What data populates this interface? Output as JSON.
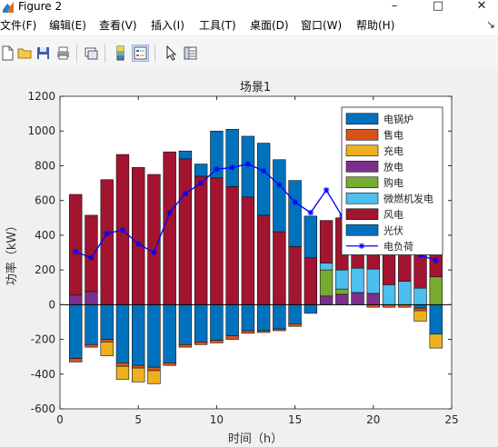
{
  "window": {
    "title": "Figure 2",
    "minimize": "–",
    "maximize": "□",
    "close": "✕"
  },
  "menu": {
    "items": [
      "文件(F)",
      "编辑(E)",
      "查看(V)",
      "插入(I)",
      "工具(T)",
      "桌面(D)",
      "窗口(W)",
      "帮助(H)"
    ],
    "dock_glyph": "↘"
  },
  "toolbar": {
    "icons": [
      "new-file-icon",
      "open-file-icon",
      "save-icon",
      "print-icon",
      "link-plot-icon",
      "insert-colorbar-icon",
      "insert-legend-icon",
      "pointer-icon",
      "property-inspector-icon"
    ]
  },
  "colors": {
    "boiler": "#0072bd",
    "sell": "#d95319",
    "charge": "#edb120",
    "discharge": "#7e2f8e",
    "buy": "#77ac30",
    "turbine": "#4dbeee",
    "wind": "#a2142f",
    "pv": "#0072bd",
    "load": "#0000ff"
  },
  "chart_data": {
    "type": "bar",
    "stacked": true,
    "title": "场景1",
    "xlabel": "时间（h）",
    "ylabel": "功率（kW）",
    "xlim": [
      0,
      25
    ],
    "ylim": [
      -600,
      1200
    ],
    "xticks": [
      0,
      5,
      10,
      15,
      20,
      25
    ],
    "yticks": [
      -600,
      -400,
      -200,
      0,
      200,
      400,
      600,
      800,
      1000,
      1200
    ],
    "legend_position": "top-right",
    "x": [
      1,
      2,
      3,
      4,
      5,
      6,
      7,
      8,
      9,
      10,
      11,
      12,
      13,
      14,
      15,
      16,
      17,
      18,
      19,
      20,
      21,
      22,
      23,
      24
    ],
    "positive_series": [
      {
        "key": "discharge",
        "name": "放电",
        "values": [
          55,
          75,
          0,
          0,
          0,
          0,
          0,
          0,
          0,
          0,
          0,
          0,
          0,
          0,
          0,
          0,
          50,
          60,
          70,
          65,
          0,
          0,
          0,
          0
        ]
      },
      {
        "key": "buy",
        "name": "购电",
        "values": [
          0,
          0,
          0,
          0,
          0,
          0,
          0,
          0,
          0,
          0,
          0,
          0,
          0,
          0,
          0,
          0,
          150,
          30,
          0,
          0,
          0,
          0,
          0,
          160
        ]
      },
      {
        "key": "turbine",
        "name": "微燃机发电",
        "values": [
          0,
          0,
          0,
          0,
          0,
          0,
          0,
          0,
          0,
          0,
          0,
          0,
          0,
          0,
          0,
          0,
          40,
          110,
          140,
          140,
          115,
          135,
          95,
          0
        ]
      },
      {
        "key": "wind",
        "name": "风电",
        "values": [
          580,
          440,
          720,
          865,
          790,
          750,
          880,
          840,
          740,
          730,
          680,
          620,
          515,
          420,
          335,
          270,
          245,
          300,
          320,
          300,
          300,
          305,
          295,
          285
        ]
      },
      {
        "key": "pv",
        "name": "光伏",
        "values": [
          0,
          0,
          0,
          0,
          0,
          0,
          0,
          45,
          70,
          270,
          330,
          350,
          415,
          415,
          380,
          240,
          0,
          0,
          0,
          0,
          0,
          0,
          0,
          0
        ]
      }
    ],
    "negative_series": [
      {
        "key": "pv",
        "name": "光伏",
        "values": [
          -310,
          -230,
          -200,
          -335,
          -350,
          -360,
          -335,
          -230,
          -215,
          -205,
          -180,
          -150,
          -150,
          -140,
          -110,
          -50,
          0,
          0,
          0,
          0,
          0,
          0,
          -20,
          -170
        ]
      },
      {
        "key": "sell",
        "name": "售电",
        "values": [
          -20,
          -15,
          -15,
          -20,
          -15,
          -20,
          -15,
          -15,
          -15,
          -15,
          -20,
          -15,
          -10,
          -10,
          -15,
          0,
          0,
          0,
          0,
          -15,
          -15,
          -15,
          -15,
          0
        ]
      },
      {
        "key": "charge",
        "name": "充电",
        "values": [
          0,
          0,
          -80,
          -75,
          -80,
          -75,
          0,
          0,
          0,
          0,
          0,
          0,
          0,
          0,
          0,
          0,
          0,
          0,
          0,
          0,
          0,
          0,
          -60,
          -80
        ]
      }
    ],
    "load": {
      "name": "电负荷",
      "values": [
        305,
        270,
        410,
        430,
        350,
        300,
        530,
        640,
        700,
        780,
        790,
        810,
        770,
        690,
        590,
        530,
        660,
        510,
        490,
        460,
        390,
        360,
        285,
        255
      ]
    },
    "legend": [
      {
        "key": "boiler",
        "label": "电锅炉",
        "kind": "patch"
      },
      {
        "key": "sell",
        "label": "售电",
        "kind": "patch"
      },
      {
        "key": "charge",
        "label": "充电",
        "kind": "patch"
      },
      {
        "key": "discharge",
        "label": "放电",
        "kind": "patch"
      },
      {
        "key": "buy",
        "label": "购电",
        "kind": "patch"
      },
      {
        "key": "turbine",
        "label": "微燃机发电",
        "kind": "patch"
      },
      {
        "key": "wind",
        "label": "风电",
        "kind": "patch"
      },
      {
        "key": "pv",
        "label": "光伏",
        "kind": "patch"
      },
      {
        "key": "load",
        "label": "电负荷",
        "kind": "line"
      }
    ]
  }
}
